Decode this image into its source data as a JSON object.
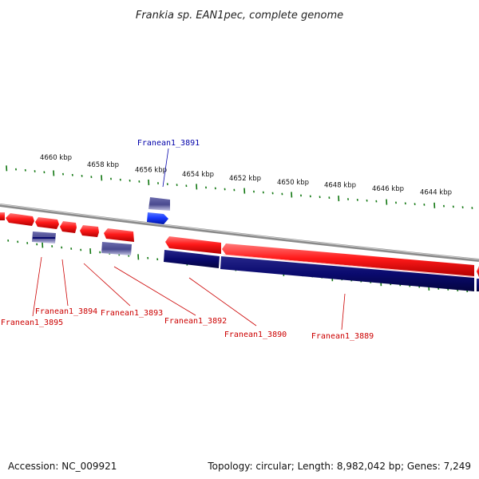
{
  "title": "Frankia sp. EAN1pec, complete genome",
  "footer": {
    "accession": "Accession: NC_009921",
    "topology": "Topology: circular; Length: 8,982,042 bp; Genes: 7,249"
  },
  "scale_labels": [
    "4660 kbp",
    "4658 kbp",
    "4656 kbp",
    "4654 kbp",
    "4652 kbp",
    "4650 kbp",
    "4648 kbp",
    "4646 kbp",
    "4644 kbp"
  ],
  "genes": [
    {
      "name": "Franean1_3891",
      "color": "#0000aa"
    },
    {
      "name": "Franean1_3895",
      "color": "#cc0000"
    },
    {
      "name": "Franean1_3894",
      "color": "#cc0000"
    },
    {
      "name": "Franean1_3893",
      "color": "#cc0000"
    },
    {
      "name": "Franean1_3892",
      "color": "#cc0000"
    },
    {
      "name": "Franean1_3890",
      "color": "#cc0000"
    },
    {
      "name": "Franean1_3889",
      "color": "#cc0000"
    }
  ],
  "colors": {
    "forward_gene": "#ee1111",
    "reverse_gene": "#1133ee",
    "coding_track": "#0a0a6e",
    "feature_box": "#4a4a8f",
    "tick_mark": "#117711",
    "backbone": "#888888"
  }
}
